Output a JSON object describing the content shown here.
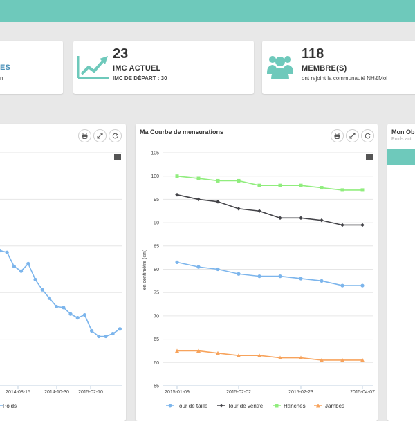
{
  "header": {
    "color": "#6ec9bb"
  },
  "stat_cards": {
    "first": {
      "label_fragment": "ES",
      "sub_fragment": "n"
    },
    "imc": {
      "icon": "trend-chart-icon",
      "value": "23",
      "label": "IMC ACTUEL",
      "sub": "IMC DE DÉPART : 30"
    },
    "members": {
      "icon": "users-group-icon",
      "value": "118",
      "label": "MEMBRE(S)",
      "sub": "ont rejoint la communauté NH&Moi"
    }
  },
  "panels": {
    "weight": {
      "legend_label": "Poids"
    },
    "measurements": {
      "title": "Ma Courbe de mensurations"
    },
    "objective": {
      "title": "Mon Ob",
      "subtitle": "Poids act"
    }
  },
  "colors": {
    "accent": "#6ec9bb",
    "taille": "#7cb5ec",
    "ventre": "#434348",
    "hanches": "#90ed7d",
    "jambes": "#f7a35c"
  },
  "chart_data": [
    {
      "type": "line",
      "title": "",
      "x_ticks": [
        "2014-08-15",
        "2014-10-30",
        "2015-02-10"
      ],
      "series": [
        {
          "name": "Poids",
          "values": [
            75.5,
            75.3,
            73.8,
            73.3,
            74.1,
            72.4,
            71.3,
            70.4,
            69.5,
            69.4,
            68.7,
            68.3,
            68.6,
            66.9,
            66.3,
            66.3,
            66.6,
            67.1
          ]
        }
      ]
    },
    {
      "type": "line",
      "title": "Ma Courbe de mensurations",
      "ylabel": "en centimètre (cm)",
      "ylim": [
        55,
        105
      ],
      "y_ticks": [
        "55",
        "60",
        "65",
        "70",
        "75",
        "80",
        "85",
        "90",
        "95",
        "100",
        "105"
      ],
      "x_ticks": [
        "2015-01-09",
        "2015-02-02",
        "2015-02-23",
        "2015-04-07"
      ],
      "categories": [
        "2015-01-09",
        "2015-01-17",
        "2015-01-25",
        "2015-02-02",
        "2015-02-09",
        "2015-02-16",
        "2015-02-23",
        "2015-03-05",
        "2015-03-15",
        "2015-04-07"
      ],
      "series": [
        {
          "name": "Tour de taille",
          "values": [
            81.5,
            80.5,
            80,
            79,
            78.5,
            78.5,
            78,
            77.5,
            76.5,
            76.5
          ]
        },
        {
          "name": "Tour de ventre",
          "values": [
            96,
            95,
            94.5,
            93,
            92.5,
            91,
            91,
            90.5,
            89.5,
            89.5
          ]
        },
        {
          "name": "Hanches",
          "values": [
            100,
            99.5,
            99,
            99,
            98,
            98,
            98,
            97.5,
            97,
            97
          ]
        },
        {
          "name": "Jambes",
          "values": [
            62.5,
            62.5,
            62,
            61.5,
            61.5,
            61,
            61,
            60.5,
            60.5,
            60.5
          ]
        }
      ]
    }
  ]
}
